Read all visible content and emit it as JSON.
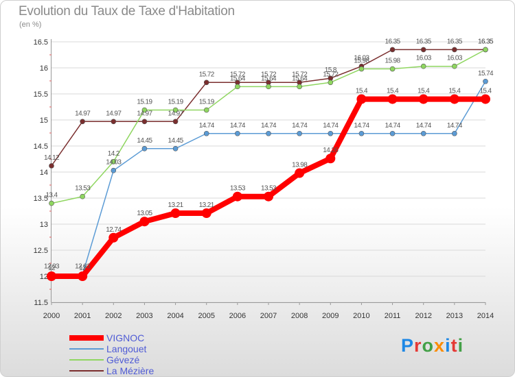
{
  "header": {
    "title": "Evolution du Taux de Taxe d'Habitation",
    "unit": "(en %)"
  },
  "brand": {
    "letters": [
      {
        "char": "P",
        "color": "#1e88e5"
      },
      {
        "char": "r",
        "color": "#e53935"
      },
      {
        "char": "o",
        "color": "#43a047"
      },
      {
        "char": "x",
        "color": "#fb8c00"
      },
      {
        "char": "i",
        "color": "#1e88e5"
      },
      {
        "char": "t",
        "color": "#e53935"
      },
      {
        "char": "i",
        "color": "#43a047"
      }
    ]
  },
  "chart_data": {
    "type": "line",
    "title": "Evolution du Taux de Taxe d'Habitation",
    "ylabel": "(en %)",
    "xlabel": "",
    "x": [
      2000,
      2001,
      2002,
      2003,
      2004,
      2005,
      2006,
      2007,
      2008,
      2009,
      2010,
      2011,
      2012,
      2013,
      2014
    ],
    "ylim": [
      11.5,
      16.5
    ],
    "yticks": [
      11.5,
      12,
      12.5,
      13,
      13.5,
      14,
      14.5,
      15,
      15.5,
      16,
      16.5
    ],
    "grid": "horizontal",
    "legend_position": "bottom-left",
    "series": [
      {
        "name": "VIGNOC",
        "color": "#ff0000",
        "width": 8,
        "marker": 7,
        "values": [
          12,
          12,
          12.74,
          13.05,
          13.21,
          13.21,
          13.53,
          13.53,
          13.98,
          14.26,
          15.4,
          15.4,
          15.4,
          15.4,
          15.4
        ],
        "labels": [
          "12",
          "12",
          "12.74",
          "13.05",
          "13.21",
          "13.21",
          "13.53",
          "13.53",
          "13.98",
          "14.26",
          "15.4",
          "15.4",
          "15.4",
          "15.4",
          "15.4"
        ]
      },
      {
        "name": "Langouet",
        "color": "#5b9bd5",
        "width": 1.5,
        "marker": 3.5,
        "values": [
          12.03,
          12.03,
          14.03,
          14.45,
          14.45,
          14.74,
          14.74,
          14.74,
          14.74,
          14.74,
          14.74,
          14.74,
          14.74,
          14.74,
          15.74
        ],
        "labels": [
          "12.03",
          "12.03",
          "14.03",
          "14.45",
          "14.45",
          "14.74",
          "14.74",
          "14.74",
          "14.74",
          "14.74",
          "14.74",
          "14.74",
          "14.74",
          "14.74",
          "15.74"
        ]
      },
      {
        "name": "Gévezé",
        "color": "#8fd660",
        "width": 1.5,
        "marker": 3.5,
        "values": [
          13.4,
          13.53,
          14.2,
          15.19,
          15.19,
          15.19,
          15.64,
          15.64,
          15.64,
          15.72,
          15.98,
          15.98,
          16.03,
          16.03,
          16.35
        ],
        "labels": [
          "13.4",
          "13.53",
          "14.2",
          "15.19",
          "15.19",
          "15.19",
          "15.64",
          "15.64",
          "15.64",
          "15.72",
          "15.98",
          "15.98",
          "16.03",
          "16.03",
          "16.35"
        ]
      },
      {
        "name": "La Mézière",
        "color": "#7a2e2e",
        "width": 1.5,
        "marker": 3.5,
        "values": [
          14.12,
          14.97,
          14.97,
          14.97,
          14.97,
          15.72,
          15.72,
          15.72,
          15.72,
          15.8,
          16.03,
          16.35,
          16.35,
          16.35,
          16.35
        ],
        "labels": [
          "14.12",
          "14.97",
          "14.97",
          "14.97",
          "14.97",
          "15.72",
          "15.72",
          "15.72",
          "15.72",
          "15.8",
          "16.03",
          "16.35",
          "16.35",
          "16.35",
          "16.35"
        ]
      }
    ]
  }
}
